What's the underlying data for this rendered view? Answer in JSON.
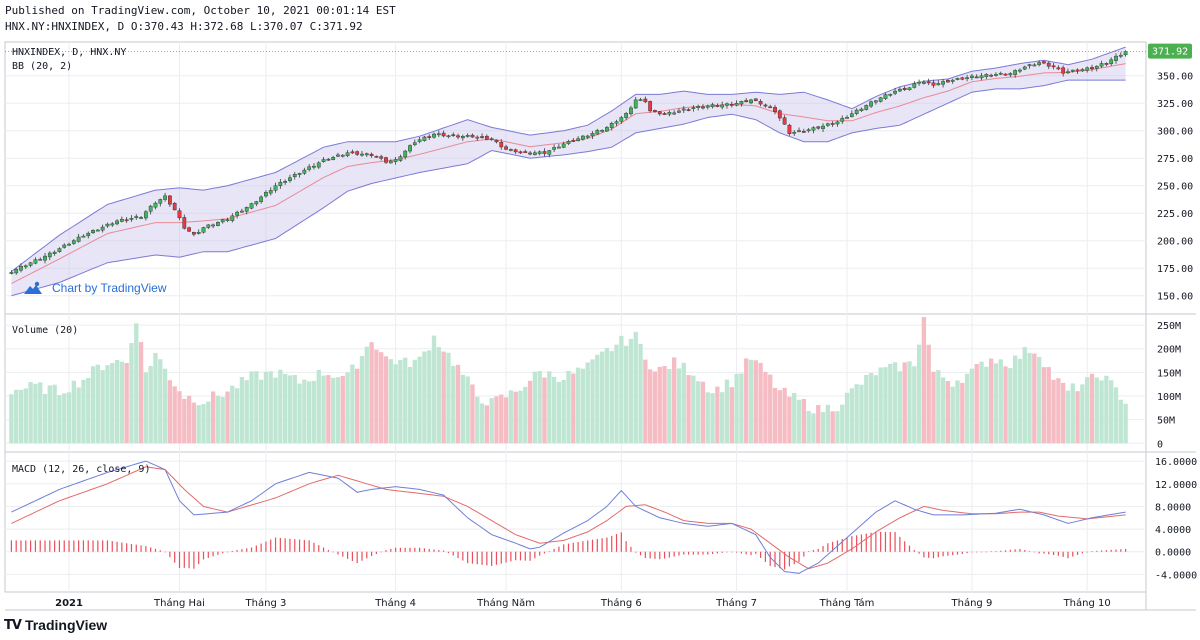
{
  "header": {
    "published_line": "Published on TradingView.com, October 10, 2021 00:01:14 EST",
    "symbol_line": "HNX.NY:HNXINDEX, D O:370.43 H:372.68 L:370.07 C:371.92"
  },
  "watermark": {
    "text": "Chart by TradingView",
    "icon": "tradingview-cloud-icon"
  },
  "footer": {
    "logo_text": "TradingView",
    "logo_mark": "TV"
  },
  "colors": {
    "up": "#26a69a",
    "down": "#ef5350",
    "candle_up": "#41b35c",
    "candle_down": "#e53945",
    "bb_fill": "#c9c6ec",
    "bb_band": "#7c7ad6",
    "bb_mid": "#e88a96",
    "vol_up": "#bfe6d3",
    "vol_down": "#f6bcc4",
    "macd_line": "#6f7fd8",
    "signal_line": "#e36a6a",
    "hist": "#e94e5a",
    "last_price": "#4caf50",
    "grid": "#ecedf1",
    "border": "#c6c9d2"
  },
  "chart_data": [
    {
      "type": "candlestick",
      "pane": "price",
      "symbol": "HNXINDEX",
      "title": "HNXINDEX, D, HNX.NY",
      "indicator_label": "BB (20, 2)",
      "ylim": [
        137,
        377
      ],
      "yticks": [
        150,
        175,
        200,
        225,
        250,
        275,
        300,
        325,
        350
      ],
      "ytick_labels": [
        "150.00",
        "175.00",
        "200.00",
        "225.00",
        "250.00",
        "275.00",
        "300.00",
        "325.00",
        "350.00"
      ],
      "last_price": 371.92,
      "last_price_label": "371.92",
      "close_keypoints": [
        [
          0,
          172
        ],
        [
          8,
          188
        ],
        [
          15,
          205
        ],
        [
          22,
          218
        ],
        [
          27,
          222
        ],
        [
          30,
          235
        ],
        [
          32,
          240
        ],
        [
          34,
          228
        ],
        [
          36,
          212
        ],
        [
          38,
          205
        ],
        [
          40,
          212
        ],
        [
          45,
          220
        ],
        [
          50,
          233
        ],
        [
          55,
          250
        ],
        [
          60,
          262
        ],
        [
          65,
          273
        ],
        [
          70,
          280
        ],
        [
          75,
          278
        ],
        [
          78,
          272
        ],
        [
          80,
          273
        ],
        [
          84,
          290
        ],
        [
          88,
          297
        ],
        [
          92,
          295
        ],
        [
          96,
          295
        ],
        [
          100,
          292
        ],
        [
          103,
          283
        ],
        [
          107,
          280
        ],
        [
          111,
          280
        ],
        [
          115,
          288
        ],
        [
          120,
          296
        ],
        [
          124,
          303
        ],
        [
          128,
          315
        ],
        [
          130,
          328
        ],
        [
          132,
          327
        ],
        [
          133,
          318
        ],
        [
          136,
          315
        ],
        [
          139,
          318
        ],
        [
          142,
          321
        ],
        [
          146,
          323
        ],
        [
          150,
          324
        ],
        [
          154,
          328
        ],
        [
          156,
          325
        ],
        [
          159,
          318
        ],
        [
          161,
          305
        ],
        [
          162,
          298
        ],
        [
          165,
          300
        ],
        [
          168,
          303
        ],
        [
          172,
          308
        ],
        [
          176,
          318
        ],
        [
          180,
          328
        ],
        [
          184,
          336
        ],
        [
          187,
          339
        ],
        [
          189,
          345
        ],
        [
          192,
          342
        ],
        [
          196,
          346
        ],
        [
          200,
          349
        ],
        [
          204,
          351
        ],
        [
          208,
          352
        ],
        [
          211,
          358
        ],
        [
          214,
          362
        ],
        [
          217,
          358
        ],
        [
          219,
          353
        ],
        [
          222,
          355
        ],
        [
          225,
          357
        ],
        [
          228,
          362
        ],
        [
          232,
          372
        ]
      ],
      "bb_keypoints": [
        [
          0,
          150,
          172
        ],
        [
          10,
          162,
          205
        ],
        [
          20,
          180,
          233
        ],
        [
          30,
          187,
          246
        ],
        [
          35,
          185,
          248
        ],
        [
          40,
          190,
          246
        ],
        [
          45,
          190,
          250
        ],
        [
          55,
          202,
          262
        ],
        [
          65,
          230,
          285
        ],
        [
          70,
          245,
          290
        ],
        [
          75,
          252,
          290
        ],
        [
          80,
          257,
          290
        ],
        [
          85,
          262,
          295
        ],
        [
          95,
          270,
          310
        ],
        [
          100,
          282,
          303
        ],
        [
          108,
          275,
          296
        ],
        [
          115,
          278,
          300
        ],
        [
          120,
          281,
          305
        ],
        [
          125,
          285,
          318
        ],
        [
          130,
          298,
          333
        ],
        [
          135,
          302,
          333
        ],
        [
          140,
          306,
          336
        ],
        [
          145,
          312,
          333
        ],
        [
          150,
          315,
          333
        ],
        [
          155,
          310,
          335
        ],
        [
          160,
          298,
          333
        ],
        [
          165,
          290,
          335
        ],
        [
          170,
          290,
          328
        ],
        [
          175,
          298,
          320
        ],
        [
          180,
          302,
          331
        ],
        [
          185,
          305,
          340
        ],
        [
          190,
          315,
          345
        ],
        [
          195,
          325,
          347
        ],
        [
          200,
          335,
          354
        ],
        [
          205,
          338,
          357
        ],
        [
          210,
          338,
          361
        ],
        [
          215,
          341,
          364
        ],
        [
          220,
          346,
          360
        ],
        [
          225,
          346,
          365
        ],
        [
          232,
          346,
          376
        ]
      ],
      "xtick_labels": [
        "2021",
        "Tháng Hai",
        "Tháng 3",
        "Tháng 4",
        "Tháng Năm",
        "Tháng 6",
        "Tháng 7",
        "Tháng Tám",
        "Tháng 9",
        "Tháng 10"
      ],
      "xtick_bars": [
        12,
        35,
        53,
        80,
        103,
        127,
        151,
        174,
        200,
        224
      ]
    },
    {
      "type": "bar",
      "pane": "volume",
      "title": "Volume (20)",
      "ylim": [
        -10,
        265
      ],
      "yticks": [
        0,
        50,
        100,
        150,
        200,
        250
      ],
      "ytick_labels": [
        "0",
        "50M",
        "100M",
        "150M",
        "200M",
        "250M"
      ],
      "volume_keypoints": [
        [
          0,
          112
        ],
        [
          5,
          120
        ],
        [
          10,
          110
        ],
        [
          15,
          135
        ],
        [
          18,
          160
        ],
        [
          21,
          175
        ],
        [
          24,
          170
        ],
        [
          26,
          265
        ],
        [
          28,
          150
        ],
        [
          30,
          190
        ],
        [
          33,
          140
        ],
        [
          36,
          100
        ],
        [
          40,
          90
        ],
        [
          45,
          110
        ],
        [
          50,
          140
        ],
        [
          55,
          150
        ],
        [
          60,
          130
        ],
        [
          65,
          150
        ],
        [
          70,
          140
        ],
        [
          72,
          170
        ],
        [
          75,
          220
        ],
        [
          78,
          180
        ],
        [
          82,
          170
        ],
        [
          85,
          175
        ],
        [
          88,
          225
        ],
        [
          90,
          200
        ],
        [
          93,
          160
        ],
        [
          97,
          100
        ],
        [
          100,
          85
        ],
        [
          105,
          110
        ],
        [
          110,
          150
        ],
        [
          115,
          140
        ],
        [
          120,
          160
        ],
        [
          124,
          195
        ],
        [
          127,
          215
        ],
        [
          130,
          225
        ],
        [
          134,
          150
        ],
        [
          138,
          170
        ],
        [
          142,
          150
        ],
        [
          146,
          110
        ],
        [
          150,
          130
        ],
        [
          154,
          180
        ],
        [
          157,
          150
        ],
        [
          160,
          110
        ],
        [
          164,
          90
        ],
        [
          168,
          70
        ],
        [
          172,
          80
        ],
        [
          176,
          120
        ],
        [
          180,
          150
        ],
        [
          184,
          160
        ],
        [
          188,
          170
        ],
        [
          190,
          265
        ],
        [
          192,
          150
        ],
        [
          196,
          130
        ],
        [
          200,
          150
        ],
        [
          204,
          180
        ],
        [
          208,
          170
        ],
        [
          212,
          200
        ],
        [
          214,
          190
        ],
        [
          217,
          140
        ],
        [
          220,
          110
        ],
        [
          224,
          130
        ],
        [
          227,
          145
        ],
        [
          232,
          90
        ]
      ]
    },
    {
      "type": "line",
      "pane": "macd",
      "title": "MACD (12, 26, close, 9)",
      "ylim": [
        -6.4,
        16.9
      ],
      "yticks": [
        -4,
        0,
        4,
        8,
        12,
        16
      ],
      "ytick_labels": [
        "-4.0000",
        "0.0000",
        "4.0000",
        "8.0000",
        "12.0000",
        "16.0000"
      ],
      "macd_keypoints": [
        [
          0,
          7
        ],
        [
          10,
          11
        ],
        [
          20,
          14
        ],
        [
          28,
          16
        ],
        [
          32,
          14.5
        ],
        [
          35,
          9
        ],
        [
          38,
          6.5
        ],
        [
          45,
          7
        ],
        [
          50,
          9
        ],
        [
          55,
          12
        ],
        [
          62,
          14
        ],
        [
          68,
          13
        ],
        [
          72,
          10.5
        ],
        [
          75,
          11
        ],
        [
          80,
          11.5
        ],
        [
          85,
          11
        ],
        [
          90,
          10
        ],
        [
          95,
          6
        ],
        [
          100,
          3
        ],
        [
          105,
          1.5
        ],
        [
          108,
          0.5
        ],
        [
          110,
          0.8
        ],
        [
          115,
          3.3
        ],
        [
          120,
          5.5
        ],
        [
          124,
          8
        ],
        [
          127,
          10.8
        ],
        [
          130,
          8
        ],
        [
          135,
          6
        ],
        [
          140,
          5
        ],
        [
          145,
          4.5
        ],
        [
          150,
          5
        ],
        [
          155,
          3
        ],
        [
          158,
          -1
        ],
        [
          161,
          -3.5
        ],
        [
          164,
          -3.8
        ],
        [
          168,
          -2
        ],
        [
          172,
          1
        ],
        [
          176,
          4
        ],
        [
          180,
          7
        ],
        [
          184,
          9
        ],
        [
          188,
          7.5
        ],
        [
          192,
          6.5
        ],
        [
          198,
          6.5
        ],
        [
          205,
          6.8
        ],
        [
          210,
          7.5
        ],
        [
          215,
          6.5
        ],
        [
          220,
          5
        ],
        [
          225,
          6
        ],
        [
          232,
          7
        ]
      ],
      "signal_keypoints": [
        [
          0,
          5
        ],
        [
          10,
          9
        ],
        [
          20,
          12
        ],
        [
          28,
          15
        ],
        [
          32,
          14.5
        ],
        [
          36,
          11
        ],
        [
          40,
          8
        ],
        [
          45,
          7
        ],
        [
          55,
          9.5
        ],
        [
          62,
          12
        ],
        [
          68,
          13.5
        ],
        [
          72,
          12.5
        ],
        [
          78,
          11
        ],
        [
          85,
          10.3
        ],
        [
          90,
          9.8
        ],
        [
          95,
          8
        ],
        [
          100,
          5.5
        ],
        [
          105,
          3
        ],
        [
          110,
          1.5
        ],
        [
          115,
          2
        ],
        [
          120,
          3.5
        ],
        [
          124,
          5.5
        ],
        [
          128,
          8
        ],
        [
          132,
          8.3
        ],
        [
          136,
          7
        ],
        [
          140,
          5.5
        ],
        [
          145,
          5
        ],
        [
          150,
          5
        ],
        [
          154,
          4
        ],
        [
          158,
          1.5
        ],
        [
          162,
          -1
        ],
        [
          166,
          -3
        ],
        [
          170,
          -2
        ],
        [
          175,
          0.5
        ],
        [
          180,
          3.5
        ],
        [
          185,
          6
        ],
        [
          190,
          8
        ],
        [
          194,
          7.3
        ],
        [
          200,
          6.7
        ],
        [
          205,
          6.7
        ],
        [
          210,
          7
        ],
        [
          214,
          7
        ],
        [
          218,
          6.3
        ],
        [
          224,
          5.8
        ],
        [
          232,
          6.5
        ]
      ]
    }
  ]
}
